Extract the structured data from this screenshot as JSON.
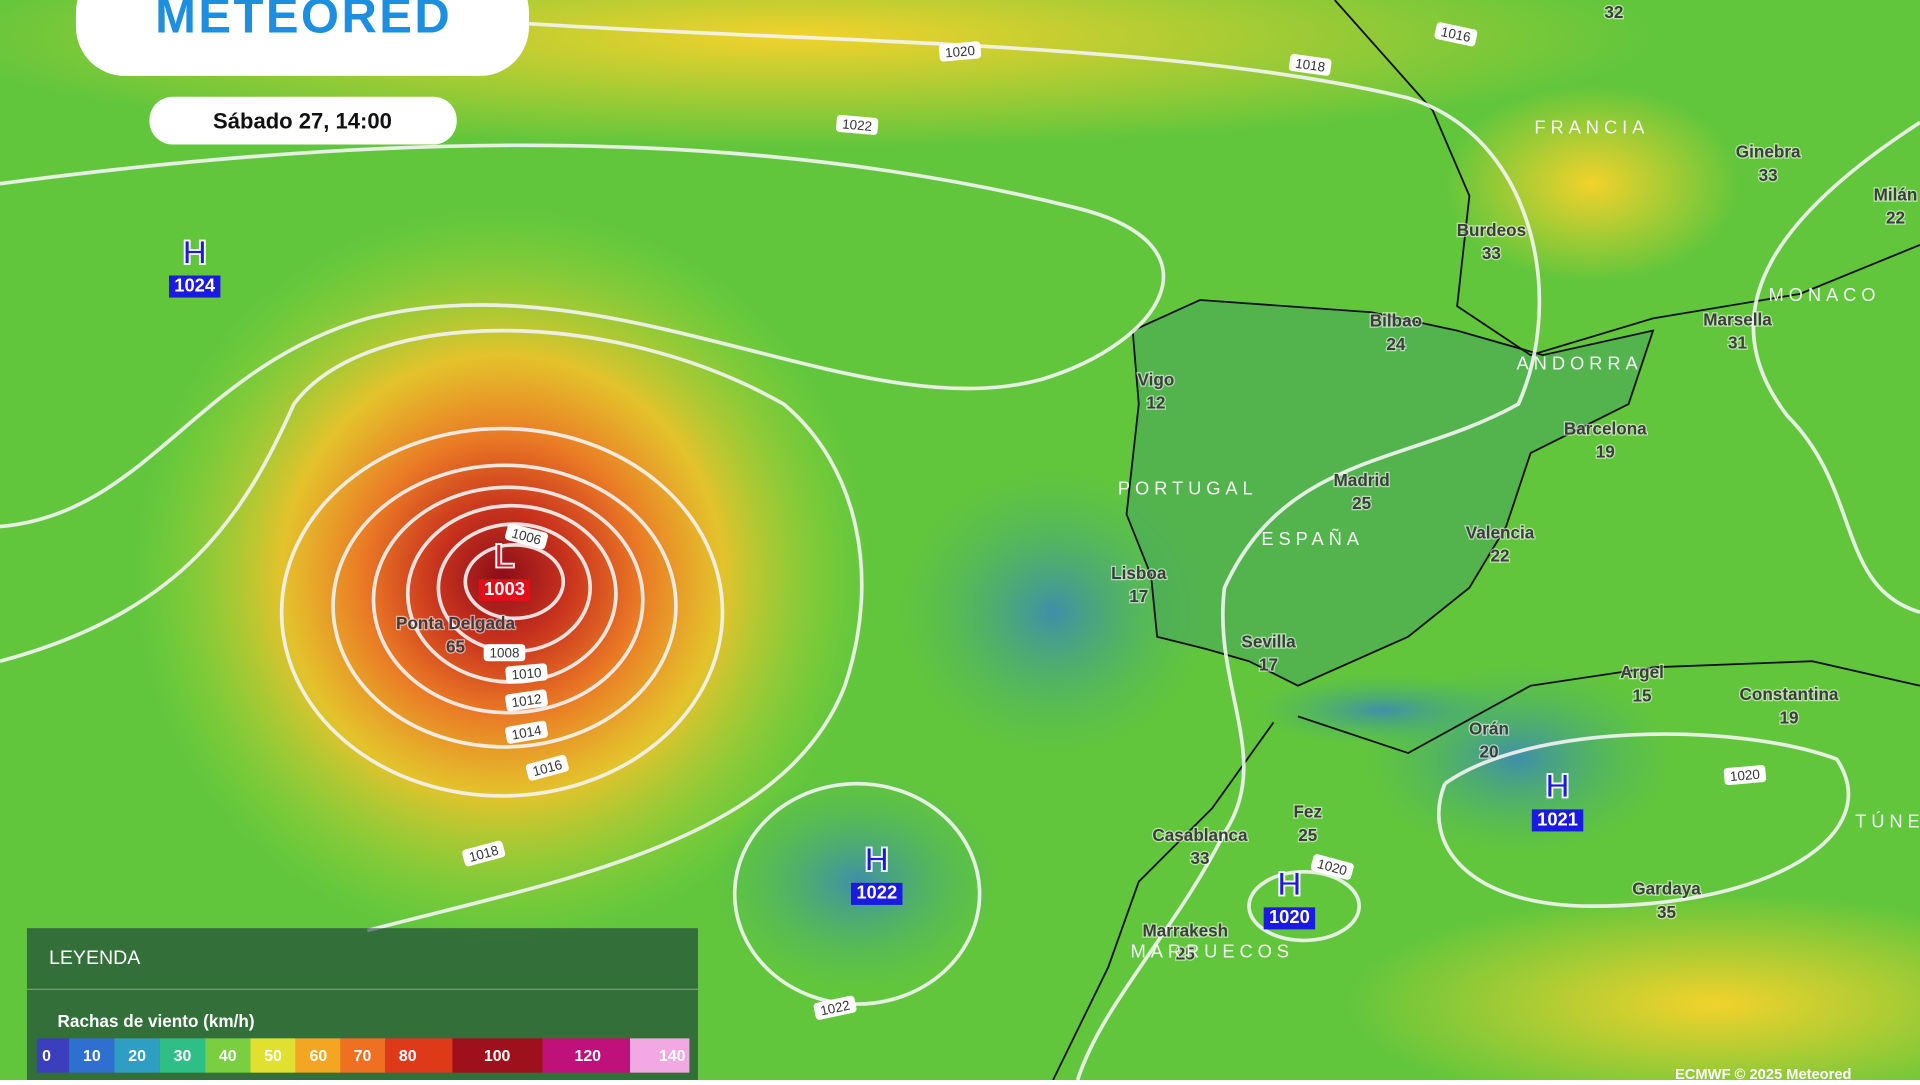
{
  "brand": "METEORED",
  "timestamp": "Sábado 27, 14:00",
  "pressure_centers": [
    {
      "kind": "H",
      "value": "1024"
    },
    {
      "kind": "L",
      "value": "1003"
    },
    {
      "kind": "H",
      "value": "1022"
    },
    {
      "kind": "H",
      "value": "1020"
    },
    {
      "kind": "H",
      "value": "1021"
    }
  ],
  "isobar_labels": [
    "1020",
    "1018",
    "1016",
    "1022",
    "1006",
    "1008",
    "1010",
    "1012",
    "1014",
    "1016",
    "1018",
    "1022",
    "1020",
    "1020"
  ],
  "cities": [
    {
      "name": "Burdeos",
      "gust": "33"
    },
    {
      "name": "Bilbao",
      "gust": "24"
    },
    {
      "name": "Vigo",
      "gust": "12"
    },
    {
      "name": "Madrid",
      "gust": "25"
    },
    {
      "name": "Barcelona",
      "gust": "19"
    },
    {
      "name": "Valencia",
      "gust": "22"
    },
    {
      "name": "Lisboa",
      "gust": "17"
    },
    {
      "name": "Sevilla",
      "gust": "17"
    },
    {
      "name": "Ponta Delgada",
      "gust": "65"
    },
    {
      "name": "Argel",
      "gust": "15"
    },
    {
      "name": "Orán",
      "gust": "20"
    },
    {
      "name": "Constantina",
      "gust": "19"
    },
    {
      "name": "Fez",
      "gust": "25"
    },
    {
      "name": "Casablanca",
      "gust": "33"
    },
    {
      "name": "Marrakesh",
      "gust": "25"
    },
    {
      "name": "Gardaya",
      "gust": "35"
    },
    {
      "name": "Ginebra",
      "gust": "33"
    },
    {
      "name": "Marsella",
      "gust": "31"
    },
    {
      "name": "Milán",
      "gust": "22"
    }
  ],
  "partial_labels": [
    "32"
  ],
  "countries": [
    "FRANCIA",
    "PORTUGAL",
    "ESPAÑA",
    "ANDORRA",
    "MONACO",
    "MARRUECOS",
    "TÚNEZ"
  ],
  "legend": {
    "title": "LEYENDA",
    "subtitle": "Rachas de viento (km/h)",
    "scale": [
      {
        "label": "0",
        "color": "#3b3fbd"
      },
      {
        "label": "10",
        "color": "#2f6fcf"
      },
      {
        "label": "20",
        "color": "#2e9ec2"
      },
      {
        "label": "30",
        "color": "#2fbf86"
      },
      {
        "label": "40",
        "color": "#79cf3f"
      },
      {
        "label": "50",
        "color": "#dfe02f"
      },
      {
        "label": "60",
        "color": "#f4a623"
      },
      {
        "label": "70",
        "color": "#ee7020"
      },
      {
        "label": "80",
        "color": "#de3a1a"
      },
      {
        "label": "100",
        "color": "#9e101c"
      },
      {
        "label": "120",
        "color": "#c0117a"
      },
      {
        "label": "140",
        "color": "#f2a8e2"
      }
    ]
  },
  "credit": "ECMWF © 2025 Meteored"
}
